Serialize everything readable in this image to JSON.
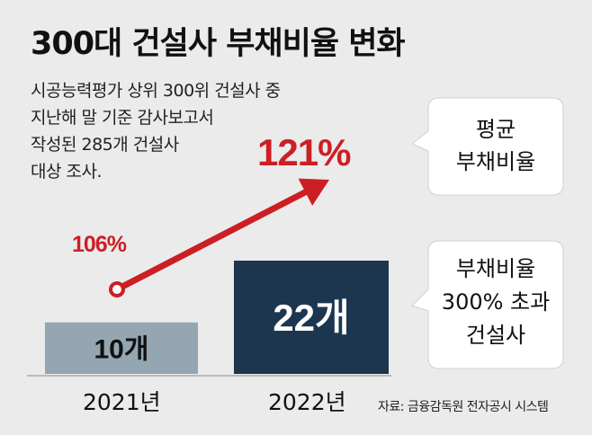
{
  "title": "300대 건설사 부채비율 변화",
  "description": [
    "시공능력평가 상위 300위 건설사 중",
    "지난해 말 기준 감사보고서",
    "작성된 285개 건설사",
    "대상 조사."
  ],
  "source": "자료: 금융감독원 전자공시 시스템",
  "colors": {
    "bar_2021": "#94a6b2",
    "bar_2022": "#1d3650",
    "line": "#cc1f24",
    "bubble": "#ffffff"
  },
  "chart_data": [
    {
      "type": "line",
      "name_label": "평균 부채비율",
      "legend_lines": [
        "평균",
        "부채비율"
      ],
      "categories": [
        "2021년",
        "2022년"
      ],
      "values": [
        106,
        121
      ],
      "value_labels": [
        "106%",
        "121%"
      ],
      "unit": "%"
    },
    {
      "type": "bar",
      "name_label": "부채비율 300% 초과 건설사",
      "legend_lines": [
        "부채비율",
        "300% 초과",
        "건설사"
      ],
      "categories": [
        "2021년",
        "2022년"
      ],
      "values": [
        10,
        22
      ],
      "value_labels": [
        "10개",
        "22개"
      ],
      "unit": "개"
    }
  ]
}
